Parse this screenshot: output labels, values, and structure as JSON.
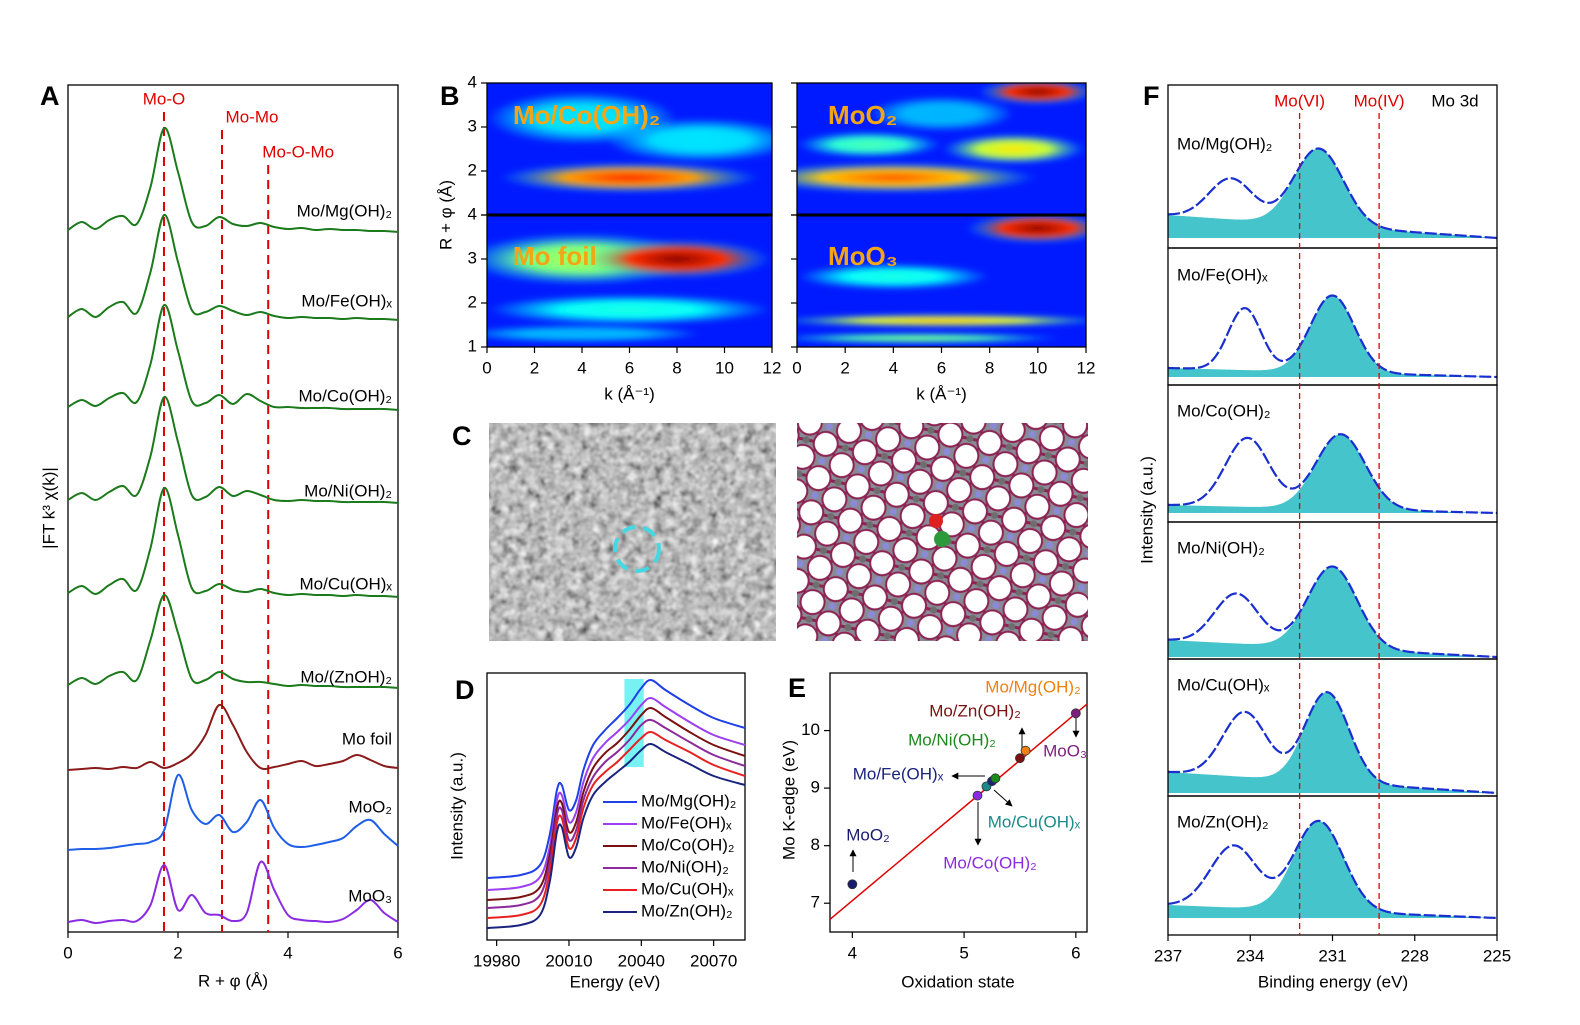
{
  "chart_data": [
    {
      "type": "line",
      "panel_label": "A",
      "xlabel": "R + φ (Å)",
      "ylabel": "|FT k³ χ(k)|",
      "xlim": [
        0,
        6
      ],
      "xticks": [
        0,
        2,
        4,
        6
      ],
      "x": [
        0,
        0.25,
        0.5,
        0.75,
        1,
        1.25,
        1.5,
        1.75,
        2,
        2.25,
        2.5,
        2.75,
        3,
        3.25,
        3.5,
        3.75,
        4,
        4.25,
        4.5,
        4.75,
        5,
        5.25,
        5.5,
        5.75,
        6
      ],
      "reference_lines": [
        {
          "label": "Mo-O",
          "x": 1.745
        },
        {
          "label": "Mo-Mo",
          "x": 2.8
        },
        {
          "label": "Mo-O-Mo",
          "x": 3.64
        }
      ],
      "series": [
        {
          "name": "Mo/Mg(OH)₂",
          "color": "#1b7a1b",
          "values": [
            0.2,
            1.0,
            0.3,
            1.2,
            1.6,
            0.8,
            4.5,
            10.4,
            6.0,
            1.0,
            0.6,
            1.5,
            0.8,
            0.6,
            0.9,
            0.5,
            0.3,
            0.4,
            0.2,
            0.3,
            0.2,
            0.2,
            0.1,
            0.1,
            0.0
          ]
        },
        {
          "name": "Mo/Fe(OH)ₓ",
          "color": "#1b7a1b",
          "values": [
            0.3,
            1.1,
            0.3,
            1.3,
            1.8,
            0.7,
            4.8,
            10.5,
            5.8,
            1.0,
            0.8,
            1.4,
            0.9,
            0.5,
            0.8,
            0.4,
            0.2,
            0.3,
            0.2,
            0.2,
            0.1,
            0.2,
            0.1,
            0.1,
            0.0
          ]
        },
        {
          "name": "Mo/Co(OH)₂",
          "color": "#1b7a1b",
          "values": [
            0.3,
            1.0,
            0.4,
            1.2,
            1.7,
            0.8,
            4.6,
            10.5,
            5.9,
            0.9,
            0.7,
            1.5,
            0.6,
            1.6,
            0.9,
            0.3,
            0.3,
            0.2,
            0.2,
            0.2,
            0.1,
            0.1,
            0.1,
            0.1,
            0.0
          ]
        },
        {
          "name": "Mo/Ni(OH)₂",
          "color": "#1b7a1b",
          "values": [
            0.3,
            1.0,
            0.3,
            1.1,
            1.7,
            0.8,
            4.7,
            10.6,
            6.1,
            0.8,
            0.6,
            1.6,
            0.7,
            1.2,
            0.8,
            0.3,
            0.2,
            0.3,
            0.2,
            0.2,
            0.1,
            0.1,
            0.1,
            0.1,
            0.0
          ]
        },
        {
          "name": "Mo/Cu(OH)ₓ",
          "color": "#1b7a1b",
          "values": [
            0.4,
            1.1,
            0.3,
            1.2,
            1.8,
            0.7,
            4.9,
            10.9,
            6.2,
            0.9,
            0.6,
            1.3,
            0.7,
            0.5,
            0.8,
            0.4,
            0.2,
            0.3,
            0.2,
            0.2,
            0.1,
            0.2,
            0.1,
            0.1,
            0.0
          ]
        },
        {
          "name": "Mo/(ZnOH)₂",
          "color": "#1b7a1b",
          "values": [
            0.3,
            1.0,
            0.4,
            1.2,
            1.6,
            0.8,
            4.8,
            9.3,
            5.5,
            0.9,
            0.8,
            1.6,
            0.9,
            0.6,
            0.6,
            0.4,
            0.2,
            0.3,
            0.2,
            0.2,
            0.1,
            0.1,
            0.1,
            0.1,
            0.0
          ]
        },
        {
          "name": "Mo foil",
          "color": "#8b1a1a",
          "values": [
            0.0,
            0.1,
            0.2,
            0.1,
            0.3,
            0.2,
            0.8,
            0.2,
            0.7,
            1.6,
            3.5,
            6.5,
            4.5,
            1.8,
            0.2,
            0.3,
            0.6,
            0.9,
            0.4,
            0.6,
            0.9,
            1.5,
            1.0,
            0.4,
            0.2
          ]
        },
        {
          "name": "MoO₂",
          "color": "#1f5fe8",
          "values": [
            0.0,
            0.1,
            0.1,
            0.2,
            0.4,
            0.6,
            0.8,
            2.0,
            7.5,
            4.0,
            2.6,
            3.5,
            1.8,
            2.8,
            5.0,
            2.2,
            0.6,
            0.3,
            0.5,
            0.8,
            1.2,
            2.4,
            3.0,
            1.6,
            0.4
          ]
        },
        {
          "name": "MoO₃",
          "color": "#8a2be2",
          "values": [
            0.3,
            0.5,
            0.2,
            0.4,
            0.5,
            0.4,
            2.0,
            6.0,
            1.5,
            3.0,
            1.2,
            1.0,
            0.4,
            1.2,
            6.3,
            3.5,
            1.0,
            0.5,
            0.4,
            0.3,
            0.6,
            1.5,
            2.5,
            1.2,
            0.3
          ]
        }
      ]
    },
    {
      "type": "heatmap",
      "panel_label": "B",
      "xlabel": "k (Å⁻¹)",
      "ylabel": "R + φ (Å)",
      "xlim": [
        0,
        12
      ],
      "xticks": [
        0,
        2,
        4,
        6,
        8,
        10,
        12
      ],
      "ylim": [
        1,
        4
      ],
      "yticks": [
        1,
        2,
        3,
        4
      ],
      "maps": [
        {
          "name": "Mo/Co(OH)₂",
          "hotspots": [
            {
              "k": 6,
              "r": 1.85,
              "dk": 11,
              "dr": 0.7,
              "level": 0.85
            },
            {
              "k": 4,
              "r": 3.2,
              "dk": 8,
              "dr": 1.2,
              "level": 0.35
            },
            {
              "k": 9,
              "r": 2.7,
              "dk": 8,
              "dr": 1.0,
              "level": 0.35
            }
          ]
        },
        {
          "name": "Mo foil",
          "hotspots": [
            {
              "k": 4,
              "r": 3,
              "dk": 10,
              "dr": 1.2,
              "level": 0.55
            },
            {
              "k": 6,
              "r": 1.85,
              "dk": 12,
              "dr": 0.7,
              "level": 0.4
            },
            {
              "k": 4,
              "r": 1.3,
              "dk": 10,
              "dr": 0.4,
              "level": 0.3
            },
            {
              "k": 8,
              "r": 3.0,
              "dk": 8,
              "dr": 0.9,
              "level": 1
            }
          ]
        },
        {
          "name": "MoO₂",
          "hotspots": [
            {
              "k": 4,
              "r": 1.85,
              "dk": 12,
              "dr": 0.7,
              "level": 0.8
            },
            {
              "k": 9,
              "r": 2.5,
              "dk": 6,
              "dr": 0.7,
              "level": 0.65
            },
            {
              "k": 3,
              "r": 2.6,
              "dk": 6,
              "dr": 0.6,
              "level": 0.45
            },
            {
              "k": 6,
              "r": 3.3,
              "dk": 6,
              "dr": 0.8,
              "level": 0.3
            },
            {
              "k": 10,
              "r": 3.8,
              "dk": 5,
              "dr": 0.6,
              "level": 1
            }
          ]
        },
        {
          "name": "MoO₃",
          "hotspots": [
            {
              "k": 4,
              "r": 2.6,
              "dk": 8,
              "dr": 0.6,
              "level": 0.4
            },
            {
              "k": 5,
              "r": 1.2,
              "dk": 12,
              "dr": 0.24,
              "level": 0.5
            },
            {
              "k": 6,
              "r": 1.6,
              "dk": 14,
              "dr": 0.3,
              "level": 0.7
            },
            {
              "k": 10,
              "r": 3.7,
              "dk": 6,
              "dr": 0.7,
              "level": 1
            }
          ]
        }
      ]
    },
    {
      "type": "image",
      "panel_label": "C"
    },
    {
      "type": "line",
      "panel_label": "D",
      "xlabel": "Energy (eV)",
      "ylabel": "Intensity (a.u.)",
      "xlim": [
        19976,
        20083
      ],
      "xticks": [
        19980,
        20010,
        20040,
        20070
      ],
      "ylim": [
        0,
        2.67
      ],
      "highlight": [
        20033,
        20041
      ],
      "legend": "lower right",
      "x": [
        19976,
        19990,
        19998,
        20002,
        20005,
        20007,
        20010,
        20013,
        20016,
        20020,
        20025,
        20030,
        20035,
        20040,
        20044,
        20050,
        20060,
        20070,
        20083
      ],
      "series": [
        {
          "name": "Mo/Mg(OH)₂",
          "color": "#1f3fe8",
          "values": [
            0.62,
            0.65,
            0.75,
            1.05,
            1.5,
            1.55,
            1.3,
            1.4,
            1.7,
            1.95,
            2.1,
            2.22,
            2.35,
            2.52,
            2.6,
            2.5,
            2.35,
            2.22,
            2.12
          ]
        },
        {
          "name": "Mo/Fe(OH)ₓ",
          "color": "#9b3ff0",
          "values": [
            0.5,
            0.53,
            0.63,
            0.93,
            1.4,
            1.45,
            1.18,
            1.28,
            1.58,
            1.82,
            1.97,
            2.08,
            2.2,
            2.35,
            2.42,
            2.33,
            2.18,
            2.05,
            1.95
          ]
        },
        {
          "name": "Mo/Co(OH)₂",
          "color": "#7a1010",
          "values": [
            0.4,
            0.43,
            0.53,
            0.85,
            1.32,
            1.37,
            1.08,
            1.18,
            1.48,
            1.72,
            1.87,
            1.97,
            2.1,
            2.25,
            2.32,
            2.23,
            2.08,
            1.95,
            1.84
          ]
        },
        {
          "name": "Mo/Ni(OH)₂",
          "color": "#8b2a9b",
          "values": [
            0.32,
            0.35,
            0.45,
            0.77,
            1.25,
            1.3,
            1.0,
            1.1,
            1.4,
            1.63,
            1.78,
            1.88,
            2.0,
            2.15,
            2.2,
            2.12,
            1.98,
            1.85,
            1.74
          ]
        },
        {
          "name": "Mo/Cu(OH)ₓ",
          "color": "#e82020",
          "values": [
            0.22,
            0.25,
            0.35,
            0.68,
            1.17,
            1.22,
            0.92,
            1.02,
            1.32,
            1.55,
            1.68,
            1.78,
            1.9,
            2.02,
            2.08,
            2.0,
            1.88,
            1.75,
            1.64
          ]
        },
        {
          "name": "Mo/Zn(OH)₂",
          "color": "#1a237e",
          "values": [
            0.12,
            0.15,
            0.25,
            0.58,
            1.08,
            1.13,
            0.83,
            0.93,
            1.22,
            1.45,
            1.58,
            1.68,
            1.78,
            1.9,
            1.96,
            1.88,
            1.76,
            1.64,
            1.55
          ]
        }
      ]
    },
    {
      "type": "scatter",
      "panel_label": "E",
      "xlabel": "Oxidation state",
      "ylabel": "Mo K-edge (eV)",
      "xlim": [
        3.8,
        6.1
      ],
      "xticks": [
        4,
        5,
        6
      ],
      "ylim": [
        6.5,
        11
      ],
      "yticks": [
        7,
        8,
        9,
        10
      ],
      "fit_line": {
        "color": "#e00000",
        "x": [
          3.8,
          6.1
        ],
        "values": [
          6.72,
          10.46
        ]
      },
      "series": [
        {
          "name": "MoO₂",
          "color": "#1a1a6e",
          "x": [
            4
          ],
          "values": [
            7.33
          ]
        },
        {
          "name": "Mo/Co(OH)₂",
          "color": "#8a2be2",
          "x": [
            5.12
          ],
          "values": [
            8.87
          ]
        },
        {
          "name": "Mo/Cu(OH)ₓ",
          "color": "#1a8a8a",
          "x": [
            5.2
          ],
          "values": [
            9.03
          ]
        },
        {
          "name": "Mo/Fe(OH)ₓ",
          "color": "#1a237e",
          "x": [
            5.25
          ],
          "values": [
            9.12
          ]
        },
        {
          "name": "Mo/Ni(OH)₂",
          "color": "#1a8a1a",
          "x": [
            5.28
          ],
          "values": [
            9.17
          ]
        },
        {
          "name": "Mo/Zn(OH)₂",
          "color": "#7a1010",
          "x": [
            5.5
          ],
          "values": [
            9.52
          ]
        },
        {
          "name": "Mo/Mg(OH)₂",
          "color": "#f08010",
          "x": [
            5.55
          ],
          "values": [
            9.65
          ]
        },
        {
          "name": "MoO₃",
          "color": "#7b1f7b",
          "x": [
            6
          ],
          "values": [
            10.3
          ]
        }
      ]
    },
    {
      "type": "peakfit",
      "panel_label": "F",
      "xlabel": "Binding energy (eV)",
      "ylabel": "Intensity (a.u.)",
      "header": "Mo 3d",
      "xlim": [
        237,
        225
      ],
      "xticks": [
        237,
        234,
        231,
        228,
        225
      ],
      "fit_color": "#1a2fd0",
      "fill_color": "#45c4cc",
      "reference_lines": [
        {
          "label": "Mo(VI)",
          "x": 232.2
        },
        {
          "label": "Mo(IV)",
          "x": 229.3
        }
      ],
      "panels": [
        {
          "name": "Mo/Mg(OH)₂",
          "background": [
            0.33,
            0.1
          ],
          "peaks": [
            {
              "center": 234.7,
              "height": 0.41,
              "sigma": 0.8
            },
            {
              "center": 231.5,
              "height": 0.77,
              "sigma": 0.9
            }
          ]
        },
        {
          "name": "Mo/Fe(OH)ₓ",
          "background": [
            0.17,
            0.08
          ],
          "peaks": [
            {
              "center": 234.2,
              "height": 0.62,
              "sigma": 0.6
            },
            {
              "center": 231.0,
              "height": 0.77,
              "sigma": 0.8
            }
          ]
        },
        {
          "name": "Mo/Co(OH)₂",
          "background": [
            0.17,
            0.09
          ],
          "peaks": [
            {
              "center": 234.1,
              "height": 0.69,
              "sigma": 0.8
            },
            {
              "center": 230.7,
              "height": 0.75,
              "sigma": 0.9
            }
          ]
        },
        {
          "name": "Mo/Ni(OH)₂",
          "background": [
            0.19,
            0.02
          ],
          "peaks": [
            {
              "center": 234.5,
              "height": 0.5,
              "sigma": 0.8
            },
            {
              "center": 231.0,
              "height": 0.82,
              "sigma": 0.9
            }
          ]
        },
        {
          "name": "Mo/Cu(OH)ₓ",
          "background": [
            0.24,
            0.03
          ],
          "peaks": [
            {
              "center": 234.2,
              "height": 0.65,
              "sigma": 0.8
            },
            {
              "center": 231.2,
              "height": 0.9,
              "sigma": 0.8
            }
          ]
        },
        {
          "name": "Mo/Zn(OH)₂",
          "background": [
            0.3,
            0.17
          ],
          "peaks": [
            {
              "center": 234.6,
              "height": 0.62,
              "sigma": 0.85
            },
            {
              "center": 231.5,
              "height": 0.9,
              "sigma": 0.9
            }
          ]
        }
      ]
    }
  ]
}
